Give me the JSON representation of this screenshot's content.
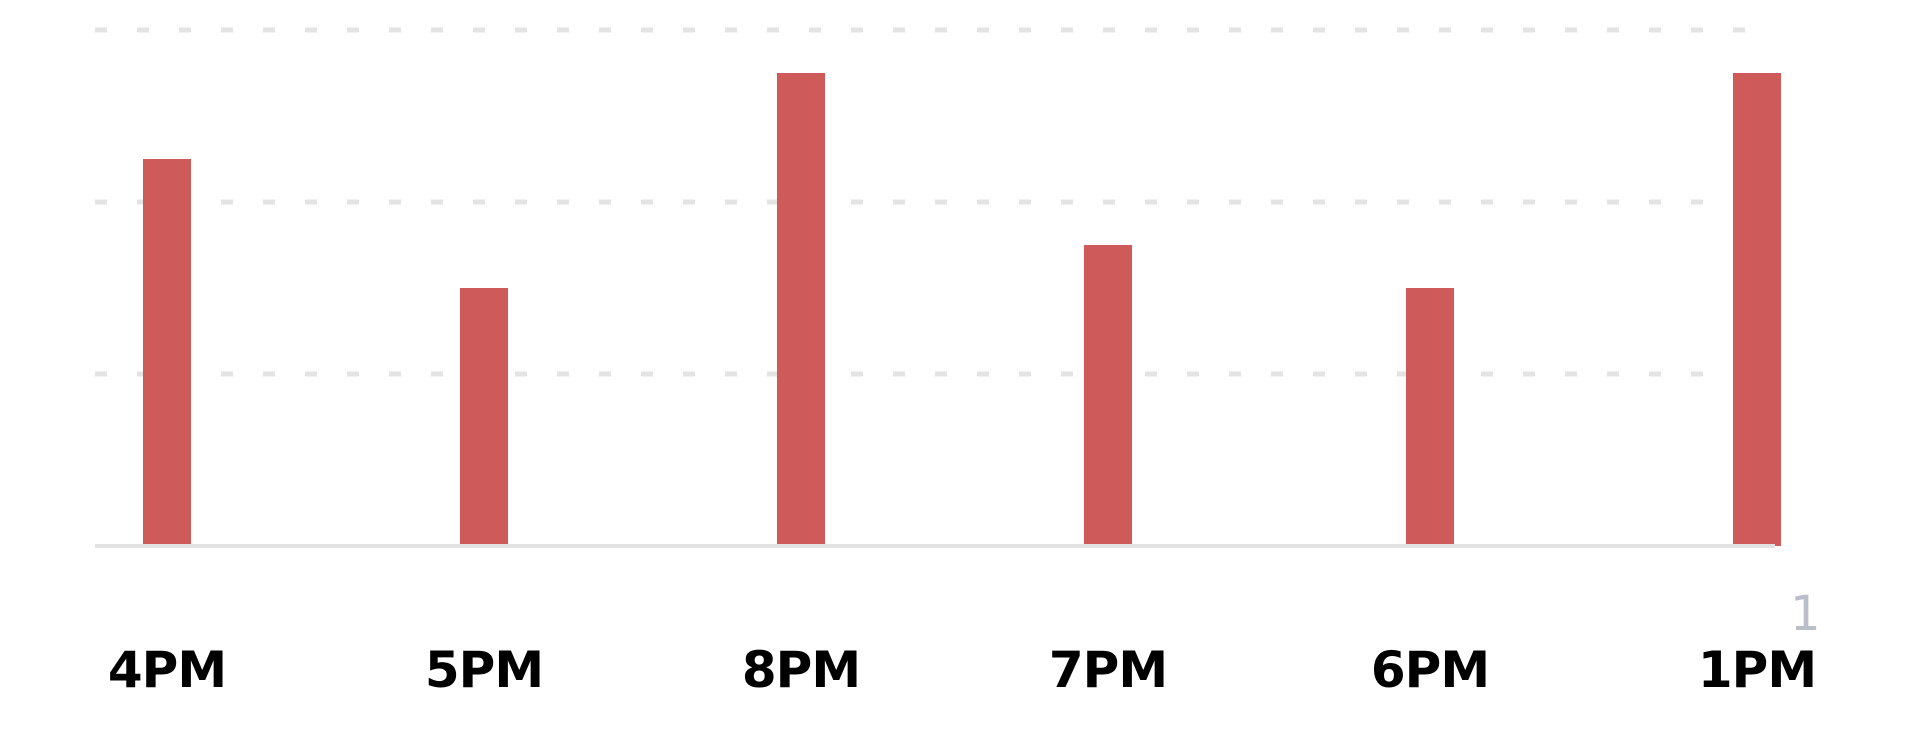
{
  "chart_data": {
    "type": "bar",
    "categories": [
      "4PM",
      "5PM",
      "8PM",
      "7PM",
      "6PM",
      "1PM"
    ],
    "values": [
      9,
      6,
      11,
      7,
      6,
      11
    ],
    "ylim": [
      0,
      12
    ],
    "grid": true,
    "gridlines": [
      4,
      8,
      12
    ],
    "title": "",
    "xlabel": "",
    "ylabel": "",
    "colors": {
      "bar": "#cf5a5a",
      "grid": "#e3e3e3",
      "axis": "#e2e2e2",
      "tick_text": "#000000"
    }
  },
  "side_mark": "1"
}
